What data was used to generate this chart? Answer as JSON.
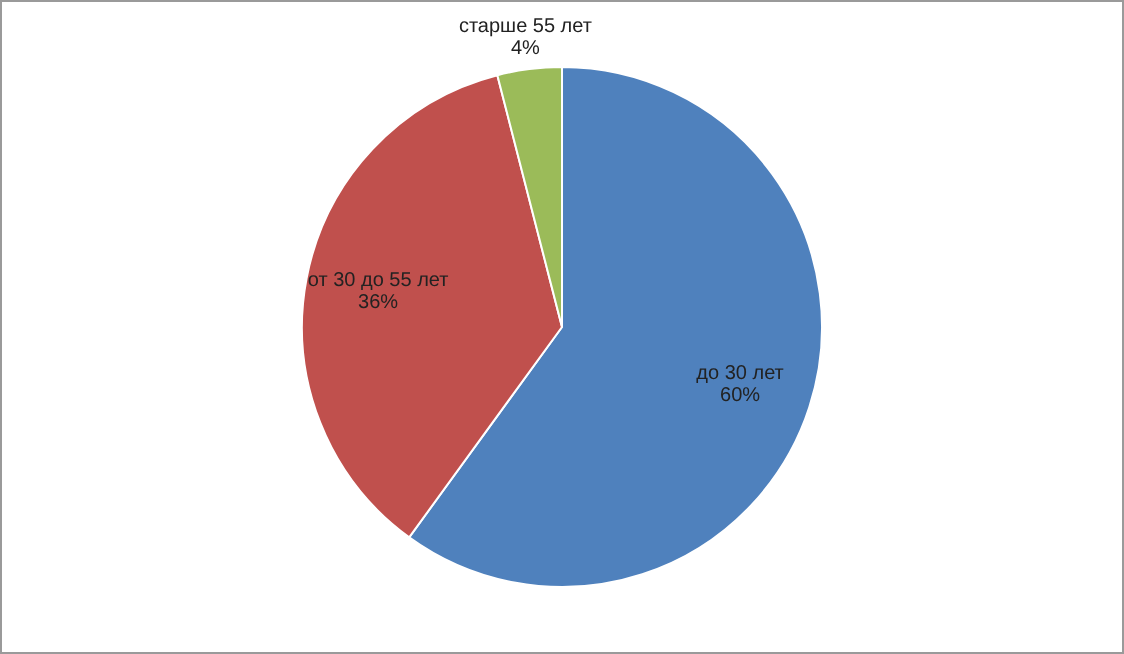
{
  "chart_data": {
    "type": "pie",
    "categories": [
      "до 30 лет",
      "от 30 до 55 лет",
      "старше 55 лет"
    ],
    "values": [
      60,
      36,
      4
    ],
    "colors": [
      "#4f81bd",
      "#c0504d",
      "#9bbb59"
    ],
    "value_labels": [
      "60%",
      "36%",
      "4%"
    ],
    "legend": false
  }
}
